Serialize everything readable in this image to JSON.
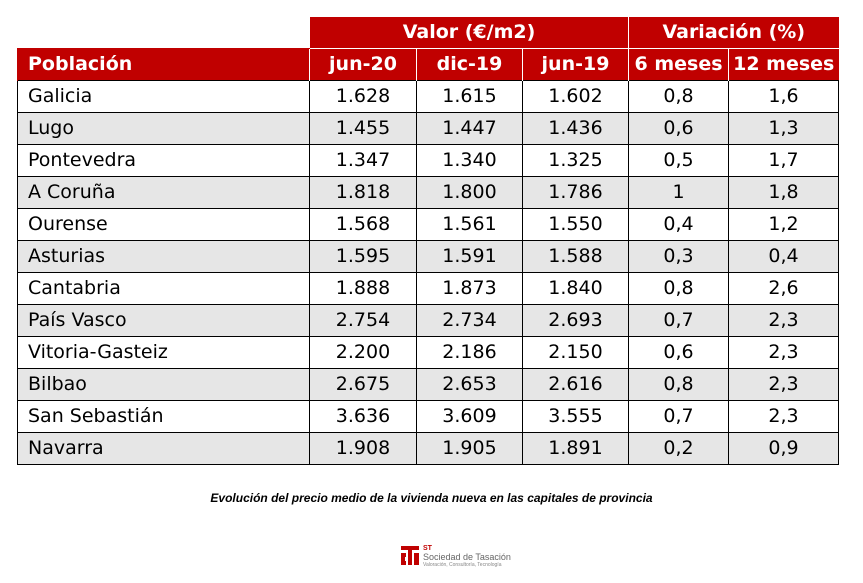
{
  "table": {
    "group_headers": {
      "valor": "Valor (€/m2)",
      "variacion": "Variación (%)"
    },
    "column_headers": [
      "Población",
      "jun-20",
      "dic-19",
      "jun-19",
      "6 meses",
      "12 meses"
    ],
    "rows": [
      [
        "Galicia",
        "1.628",
        "1.615",
        "1.602",
        "0,8",
        "1,6"
      ],
      [
        "Lugo",
        "1.455",
        "1.447",
        "1.436",
        "0,6",
        "1,3"
      ],
      [
        "Pontevedra",
        "1.347",
        "1.340",
        "1.325",
        "0,5",
        "1,7"
      ],
      [
        "A Coruña",
        "1.818",
        "1.800",
        "1.786",
        "1",
        "1,8"
      ],
      [
        "Ourense",
        "1.568",
        "1.561",
        "1.550",
        "0,4",
        "1,2"
      ],
      [
        "Asturias",
        "1.595",
        "1.591",
        "1.588",
        "0,3",
        "0,4"
      ],
      [
        "Cantabria",
        "1.888",
        "1.873",
        "1.840",
        "0,8",
        "2,6"
      ],
      [
        "País Vasco",
        "2.754",
        "2.734",
        "2.693",
        "0,7",
        "2,3"
      ],
      [
        "Vitoria-Gasteiz",
        "2.200",
        "2.186",
        "2.150",
        "0,6",
        "2,3"
      ],
      [
        "Bilbao",
        "2.675",
        "2.653",
        "2.616",
        "0,8",
        "2,3"
      ],
      [
        "San Sebastián",
        "3.636",
        "3.609",
        "3.555",
        "0,7",
        "2,3"
      ],
      [
        "Navarra",
        "1.908",
        "1.905",
        "1.891",
        "0,2",
        "0,9"
      ]
    ]
  },
  "caption": "Evolución del precio medio de la vivienda nueva en las capitales de provincia",
  "logo": {
    "abbr": "ST",
    "name": "Sociedad de Tasación",
    "tagline": "Valoración, Consultoría, Tecnología",
    "icon": "st-logo-icon"
  },
  "colors": {
    "header_red": "#c00000",
    "row_shade": "#e6e6e6",
    "text": "#000000"
  }
}
